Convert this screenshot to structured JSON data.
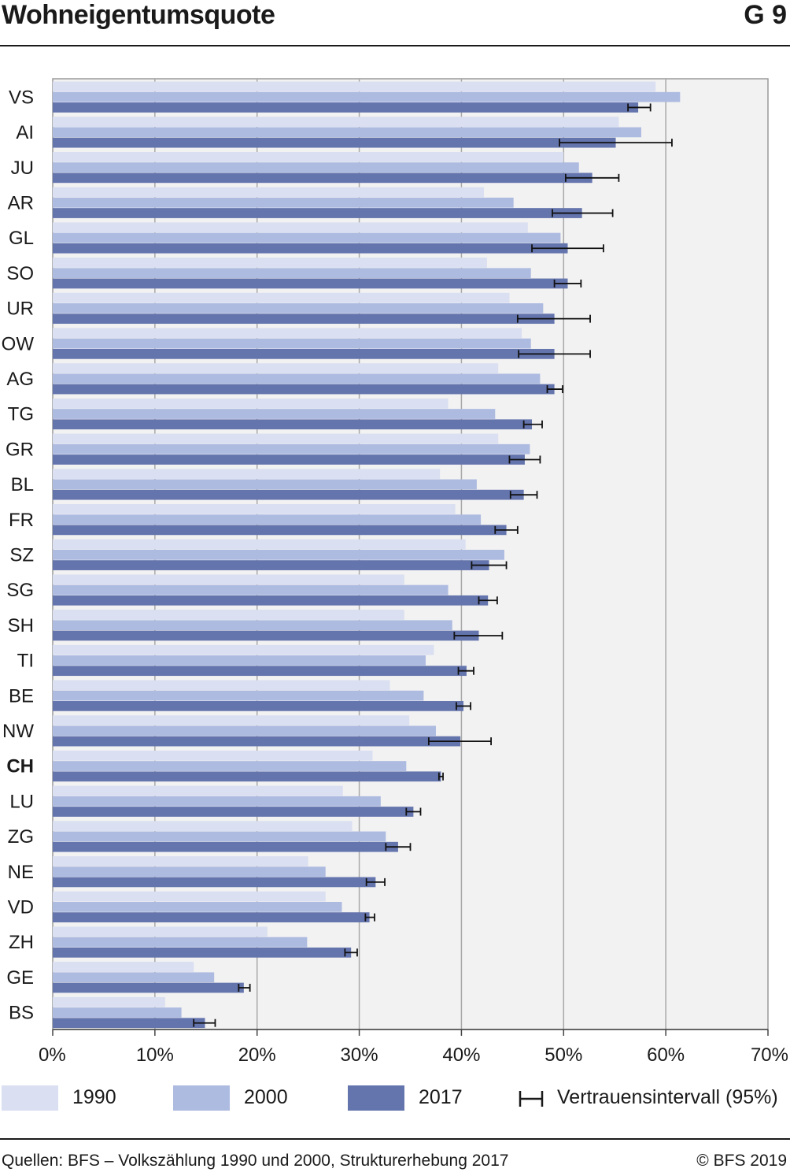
{
  "header": {
    "title": "Wohneigentumsquote",
    "figure_number": "G 9"
  },
  "chart_data": {
    "type": "bar",
    "orientation": "horizontal",
    "categories": [
      "VS",
      "AI",
      "JU",
      "AR",
      "GL",
      "SO",
      "UR",
      "OW",
      "AG",
      "TG",
      "GR",
      "BL",
      "FR",
      "SZ",
      "SG",
      "SH",
      "TI",
      "BE",
      "NW",
      "CH",
      "LU",
      "ZG",
      "NE",
      "VD",
      "ZH",
      "GE",
      "BS"
    ],
    "highlight_category": "CH",
    "series": [
      {
        "name": "1990",
        "color": "#dadff1",
        "values": [
          59.0,
          55.4,
          50.0,
          42.2,
          46.5,
          42.5,
          44.7,
          45.9,
          43.6,
          38.7,
          43.6,
          37.9,
          39.4,
          40.4,
          34.4,
          34.4,
          37.3,
          33.0,
          34.9,
          31.3,
          28.4,
          29.3,
          25.0,
          26.7,
          21.0,
          13.8,
          11.0
        ]
      },
      {
        "name": "2000",
        "color": "#aebbe1",
        "values": [
          61.4,
          57.6,
          51.5,
          45.1,
          49.7,
          46.8,
          48.0,
          46.8,
          47.7,
          43.3,
          46.7,
          41.5,
          41.9,
          44.2,
          38.7,
          39.1,
          36.5,
          36.3,
          37.5,
          34.6,
          32.1,
          32.6,
          26.7,
          28.3,
          24.9,
          15.8,
          12.6
        ]
      },
      {
        "name": "2017",
        "color": "#6474ad",
        "values": [
          57.3,
          55.1,
          52.8,
          51.8,
          50.4,
          50.4,
          49.1,
          49.1,
          49.1,
          46.9,
          46.2,
          46.1,
          44.4,
          42.7,
          42.6,
          41.7,
          40.5,
          40.2,
          39.9,
          38.0,
          35.3,
          33.8,
          31.6,
          31.0,
          29.2,
          18.7,
          14.9
        ],
        "ci_low": [
          56.3,
          49.6,
          50.2,
          48.9,
          46.9,
          49.1,
          45.5,
          45.6,
          48.4,
          46.1,
          44.7,
          44.8,
          43.3,
          41.0,
          41.7,
          39.3,
          39.7,
          39.5,
          36.8,
          37.8,
          34.6,
          32.6,
          30.7,
          30.6,
          28.6,
          18.2,
          13.8
        ],
        "ci_high": [
          58.5,
          60.6,
          55.4,
          54.8,
          53.9,
          51.7,
          52.6,
          52.6,
          49.9,
          47.9,
          47.7,
          47.4,
          45.5,
          44.4,
          43.5,
          44.0,
          41.2,
          40.9,
          42.9,
          38.2,
          36.0,
          35.0,
          32.5,
          31.5,
          29.8,
          19.3,
          15.9
        ]
      }
    ],
    "x_ticks": [
      "0%",
      "10%",
      "20%",
      "30%",
      "40%",
      "50%",
      "60%",
      "70%"
    ],
    "xlim": [
      0,
      70
    ],
    "grid": "vertical",
    "legend": {
      "position": "bottom",
      "items": [
        "1990",
        "2000",
        "2017"
      ],
      "error_bar_label": "Vertrauensintervall (95%)"
    }
  },
  "footer": {
    "source": "Quellen: BFS – Volkszählung 1990 und 2000, Strukturerhebung 2017",
    "copyright": "© BFS 2019"
  }
}
